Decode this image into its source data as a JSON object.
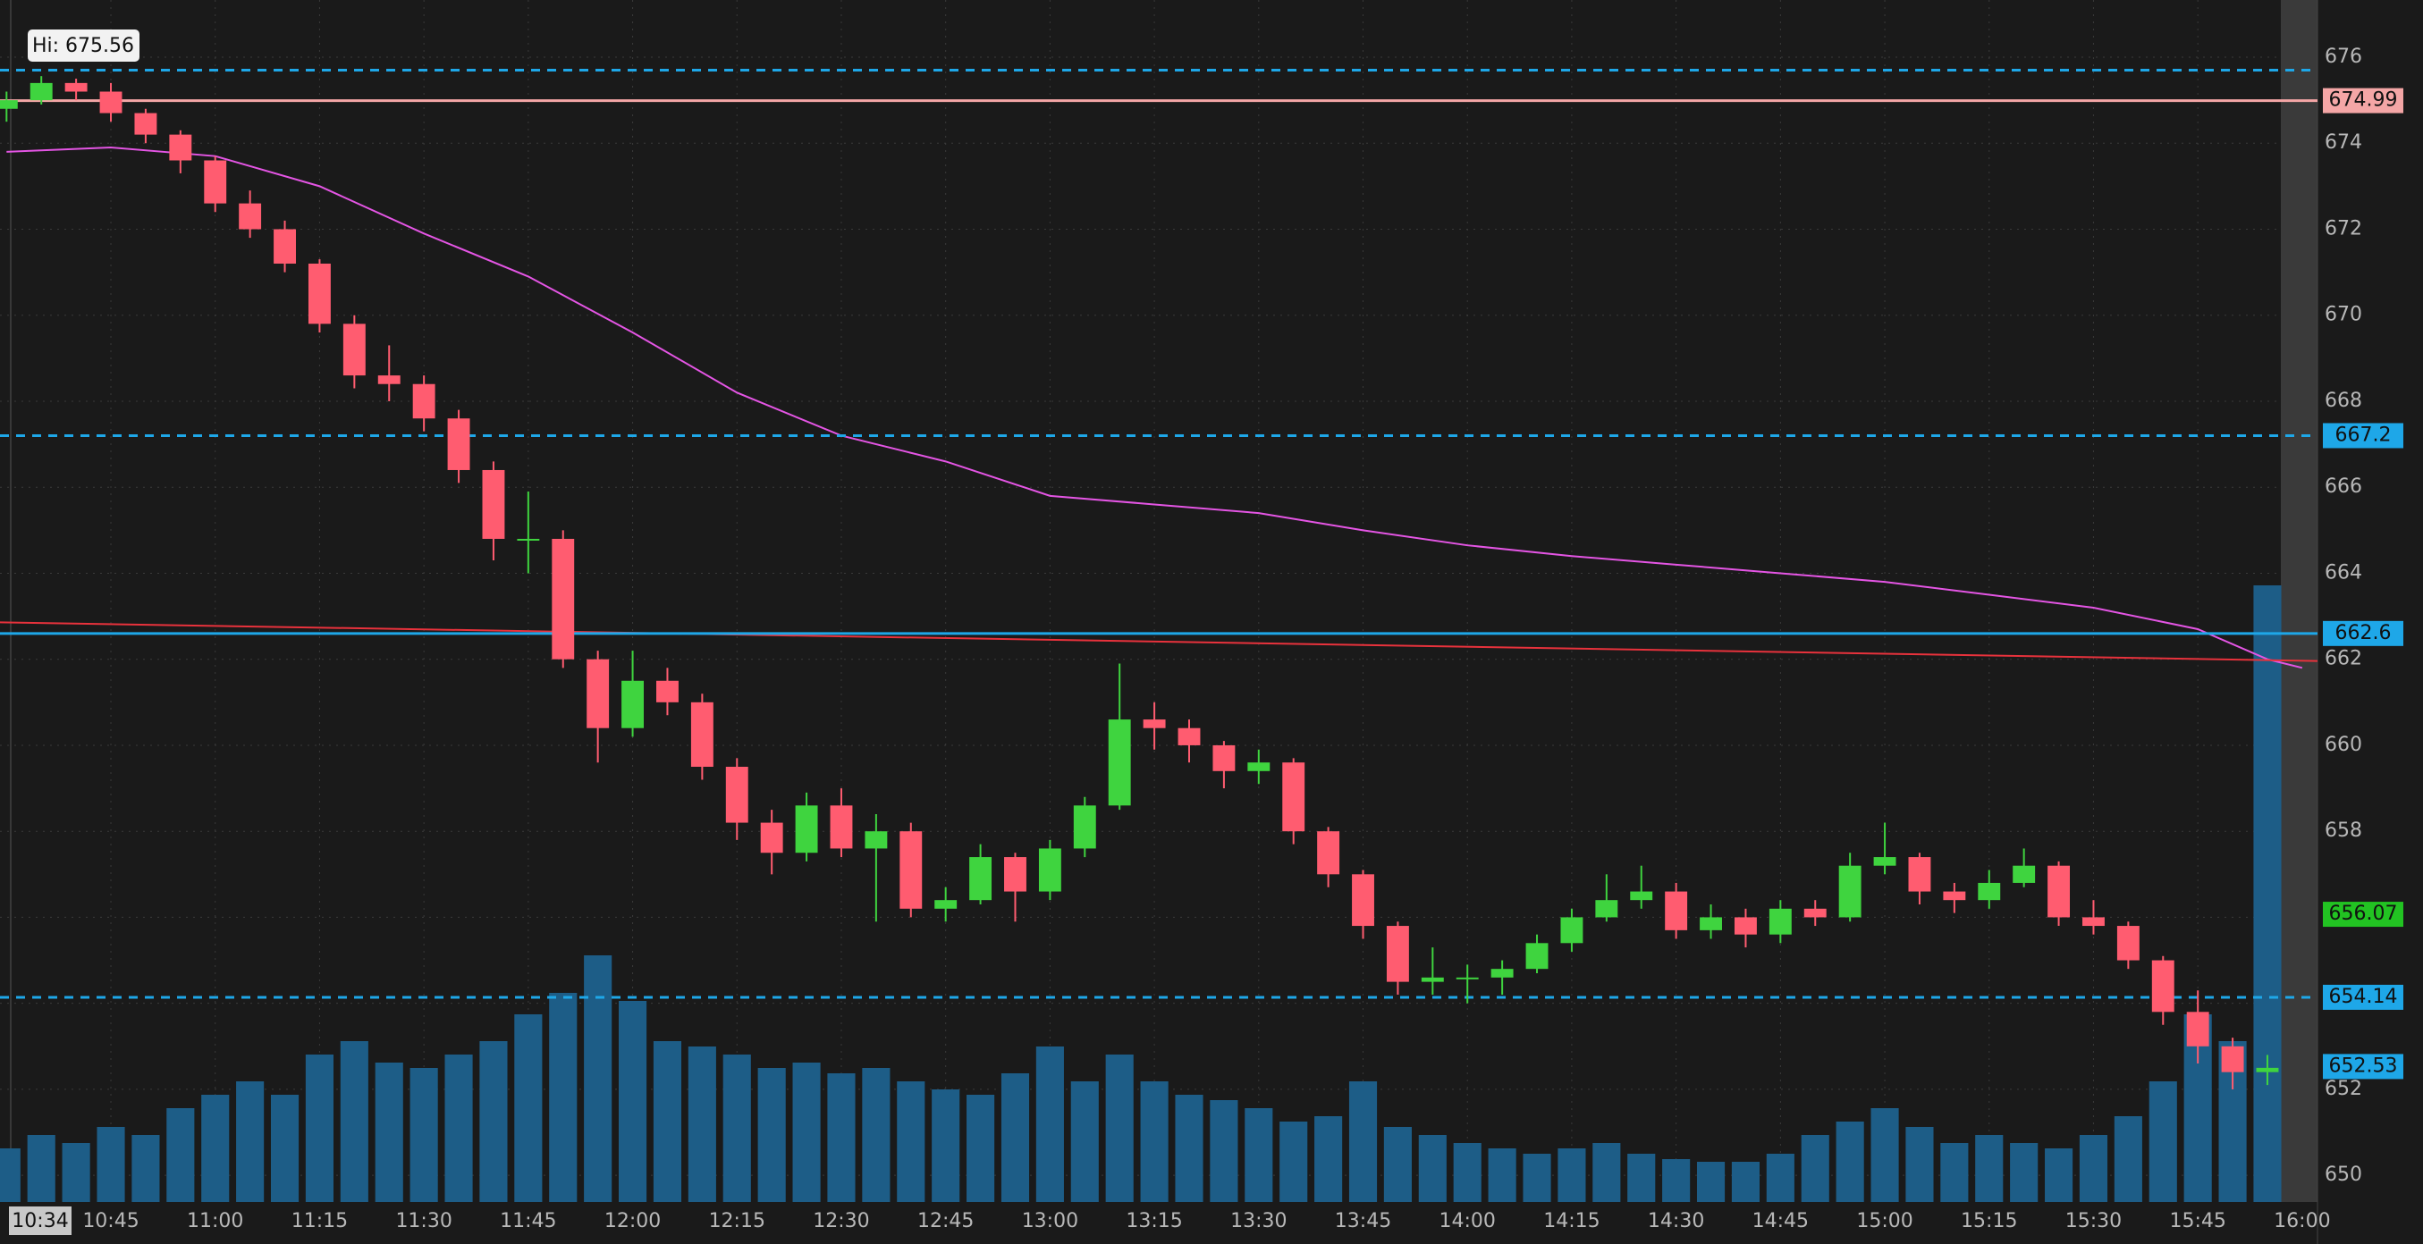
{
  "chart_data": {
    "type": "candlestick",
    "annotation": "Hi: 675.56",
    "cursor_label": "10:34",
    "x": [
      630,
      635,
      640,
      645,
      650,
      655,
      660,
      665,
      670,
      675,
      680,
      685,
      690,
      695,
      700,
      705,
      710,
      715,
      720,
      725,
      730,
      735,
      740,
      745,
      750,
      755,
      760,
      765,
      770,
      775,
      780,
      785,
      790,
      795,
      800,
      805,
      810,
      815,
      820,
      825,
      830,
      835,
      840,
      845,
      850,
      855,
      860,
      865,
      870,
      875,
      880,
      885,
      890,
      895,
      900,
      905,
      910,
      915,
      920,
      925,
      930,
      935,
      940,
      945,
      950,
      955
    ],
    "open": [
      674.8,
      675.0,
      675.4,
      675.2,
      674.7,
      674.2,
      673.6,
      672.6,
      672.0,
      671.2,
      669.8,
      668.6,
      668.4,
      667.6,
      666.4,
      664.8,
      664.8,
      662.0,
      660.4,
      661.5,
      661.0,
      659.5,
      658.2,
      657.5,
      658.6,
      657.6,
      658.0,
      656.2,
      656.4,
      657.4,
      656.6,
      657.6,
      658.6,
      660.6,
      660.4,
      660.0,
      659.4,
      659.6,
      658.0,
      657.0,
      655.8,
      654.5,
      654.6,
      654.6,
      654.8,
      655.4,
      656.0,
      656.4,
      656.6,
      655.7,
      656.0,
      655.6,
      656.2,
      656.0,
      657.2,
      657.4,
      656.6,
      656.4,
      656.8,
      657.2,
      656.0,
      655.8,
      655.0,
      653.8,
      653.0,
      652.4
    ],
    "high": [
      675.2,
      675.56,
      675.5,
      675.4,
      674.8,
      674.3,
      673.7,
      672.9,
      672.2,
      671.3,
      670.0,
      669.3,
      668.6,
      667.8,
      666.6,
      665.9,
      665.0,
      662.2,
      662.2,
      661.8,
      661.2,
      659.7,
      658.5,
      658.9,
      659.0,
      658.4,
      658.2,
      656.7,
      657.7,
      657.5,
      657.8,
      658.8,
      661.9,
      661.0,
      660.6,
      660.1,
      659.9,
      659.7,
      658.1,
      657.1,
      655.9,
      655.3,
      654.9,
      655.0,
      655.6,
      656.2,
      657.0,
      657.2,
      656.8,
      656.3,
      656.2,
      656.4,
      656.4,
      657.5,
      658.2,
      657.5,
      656.8,
      657.1,
      657.6,
      657.3,
      656.4,
      655.9,
      655.1,
      654.3,
      653.2,
      652.8
    ],
    "low": [
      674.5,
      674.9,
      675.0,
      674.5,
      674.0,
      673.3,
      672.4,
      671.8,
      671.0,
      669.6,
      668.3,
      668.0,
      667.3,
      666.1,
      664.3,
      664.0,
      661.8,
      659.6,
      660.2,
      660.7,
      659.2,
      657.8,
      657.0,
      657.3,
      657.4,
      655.9,
      656.0,
      655.9,
      656.3,
      655.9,
      656.4,
      657.4,
      658.5,
      659.9,
      659.6,
      659.0,
      659.1,
      657.7,
      656.7,
      655.5,
      654.2,
      654.2,
      654.0,
      654.2,
      654.7,
      655.2,
      655.9,
      656.2,
      655.5,
      655.5,
      655.3,
      655.4,
      655.8,
      655.9,
      657.0,
      656.3,
      656.1,
      656.2,
      656.7,
      655.8,
      655.6,
      654.8,
      653.5,
      652.6,
      652.0,
      652.1
    ],
    "close": [
      675.0,
      675.4,
      675.2,
      674.7,
      674.2,
      673.6,
      672.6,
      672.0,
      671.2,
      669.8,
      668.6,
      668.4,
      667.6,
      666.4,
      664.8,
      664.8,
      662.0,
      660.4,
      661.5,
      661.0,
      659.5,
      658.2,
      657.5,
      658.6,
      657.6,
      658.0,
      656.2,
      656.4,
      657.4,
      656.6,
      657.6,
      658.6,
      660.6,
      660.4,
      660.0,
      659.4,
      659.6,
      658.0,
      657.0,
      655.8,
      654.5,
      654.6,
      654.6,
      654.8,
      655.4,
      656.0,
      656.4,
      656.6,
      655.7,
      656.0,
      655.6,
      656.2,
      656.0,
      657.2,
      657.4,
      656.6,
      656.4,
      656.8,
      657.2,
      656.0,
      655.8,
      655.0,
      653.8,
      653.0,
      652.4,
      652.5
    ],
    "volume": [
      20,
      25,
      22,
      28,
      25,
      35,
      40,
      45,
      40,
      55,
      60,
      52,
      50,
      55,
      60,
      70,
      78,
      92,
      75,
      60,
      58,
      55,
      50,
      52,
      48,
      50,
      45,
      42,
      40,
      48,
      58,
      45,
      55,
      45,
      40,
      38,
      35,
      30,
      32,
      45,
      28,
      25,
      22,
      20,
      18,
      20,
      22,
      18,
      16,
      15,
      15,
      18,
      25,
      30,
      35,
      28,
      22,
      25,
      22,
      20,
      25,
      32,
      45,
      70,
      60,
      230
    ],
    "up_color": "#3fd43f",
    "down_color": "#ff5c70",
    "volume_color": "#1d5d87",
    "volume_lim": [
      0,
      100
    ],
    "lines": [
      {
        "color": "#e455e4",
        "x": [
          630,
          645,
          660,
          675,
          690,
          705,
          720,
          735,
          750,
          765,
          780,
          795,
          810,
          825,
          840,
          855,
          870,
          885,
          900,
          915,
          930,
          945,
          955,
          960
        ],
        "values": [
          673.8,
          673.9,
          673.7,
          673.0,
          671.9,
          670.9,
          669.6,
          668.2,
          667.2,
          666.6,
          665.8,
          665.6,
          665.4,
          665.0,
          664.65,
          664.4,
          664.2,
          664.0,
          663.8,
          663.5,
          663.2,
          662.7,
          662.0,
          661.8
        ]
      },
      {
        "color": "#e8323c",
        "x": [
          629.06,
          962.2
        ],
        "values": [
          662.86,
          661.96
        ]
      }
    ],
    "levels": [
      {
        "value": 675.7,
        "color": "#1ea7e8",
        "line": "dashed",
        "tag": false
      },
      {
        "value": 674.99,
        "color": "#f4a6a6",
        "line": "solid",
        "tag": true
      },
      {
        "value": 667.2,
        "color": "#1ea7e8",
        "line": "dashed",
        "tag": true
      },
      {
        "value": 662.6,
        "color": "#1ea7e8",
        "line": "solid",
        "tag": true
      },
      {
        "value": 656.07,
        "color": "#22c322",
        "line": "none",
        "tag": true
      },
      {
        "value": 654.14,
        "color": "#1ea7e8",
        "line": "dashed",
        "tag": true
      },
      {
        "value": 652.53,
        "color": "#1ea7e8",
        "line": "none",
        "tag": true
      }
    ],
    "xlim": [
      629.06,
      962.2
    ],
    "xticks": [
      {
        "value": 645,
        "label": "10:45"
      },
      {
        "value": 660,
        "label": "11:00"
      },
      {
        "value": 675,
        "label": "11:15"
      },
      {
        "value": 690,
        "label": "11:30"
      },
      {
        "value": 705,
        "label": "11:45"
      },
      {
        "value": 720,
        "label": "12:00"
      },
      {
        "value": 735,
        "label": "12:15"
      },
      {
        "value": 750,
        "label": "12:30"
      },
      {
        "value": 765,
        "label": "12:45"
      },
      {
        "value": 780,
        "label": "13:00"
      },
      {
        "value": 795,
        "label": "13:15"
      },
      {
        "value": 810,
        "label": "13:30"
      },
      {
        "value": 825,
        "label": "13:45"
      },
      {
        "value": 840,
        "label": "14:00"
      },
      {
        "value": 855,
        "label": "14:15"
      },
      {
        "value": 870,
        "label": "14:30"
      },
      {
        "value": 885,
        "label": "14:45"
      },
      {
        "value": 900,
        "label": "15:00"
      },
      {
        "value": 915,
        "label": "15:15"
      },
      {
        "value": 930,
        "label": "15:30"
      },
      {
        "value": 945,
        "label": "15:45"
      },
      {
        "value": 960,
        "label": "16:00"
      }
    ],
    "ylim": [
      649.38,
      677.33
    ],
    "yticks": [
      650,
      652,
      654,
      656,
      658,
      660,
      662,
      664,
      666,
      668,
      670,
      672,
      674,
      676
    ],
    "grid": true
  }
}
